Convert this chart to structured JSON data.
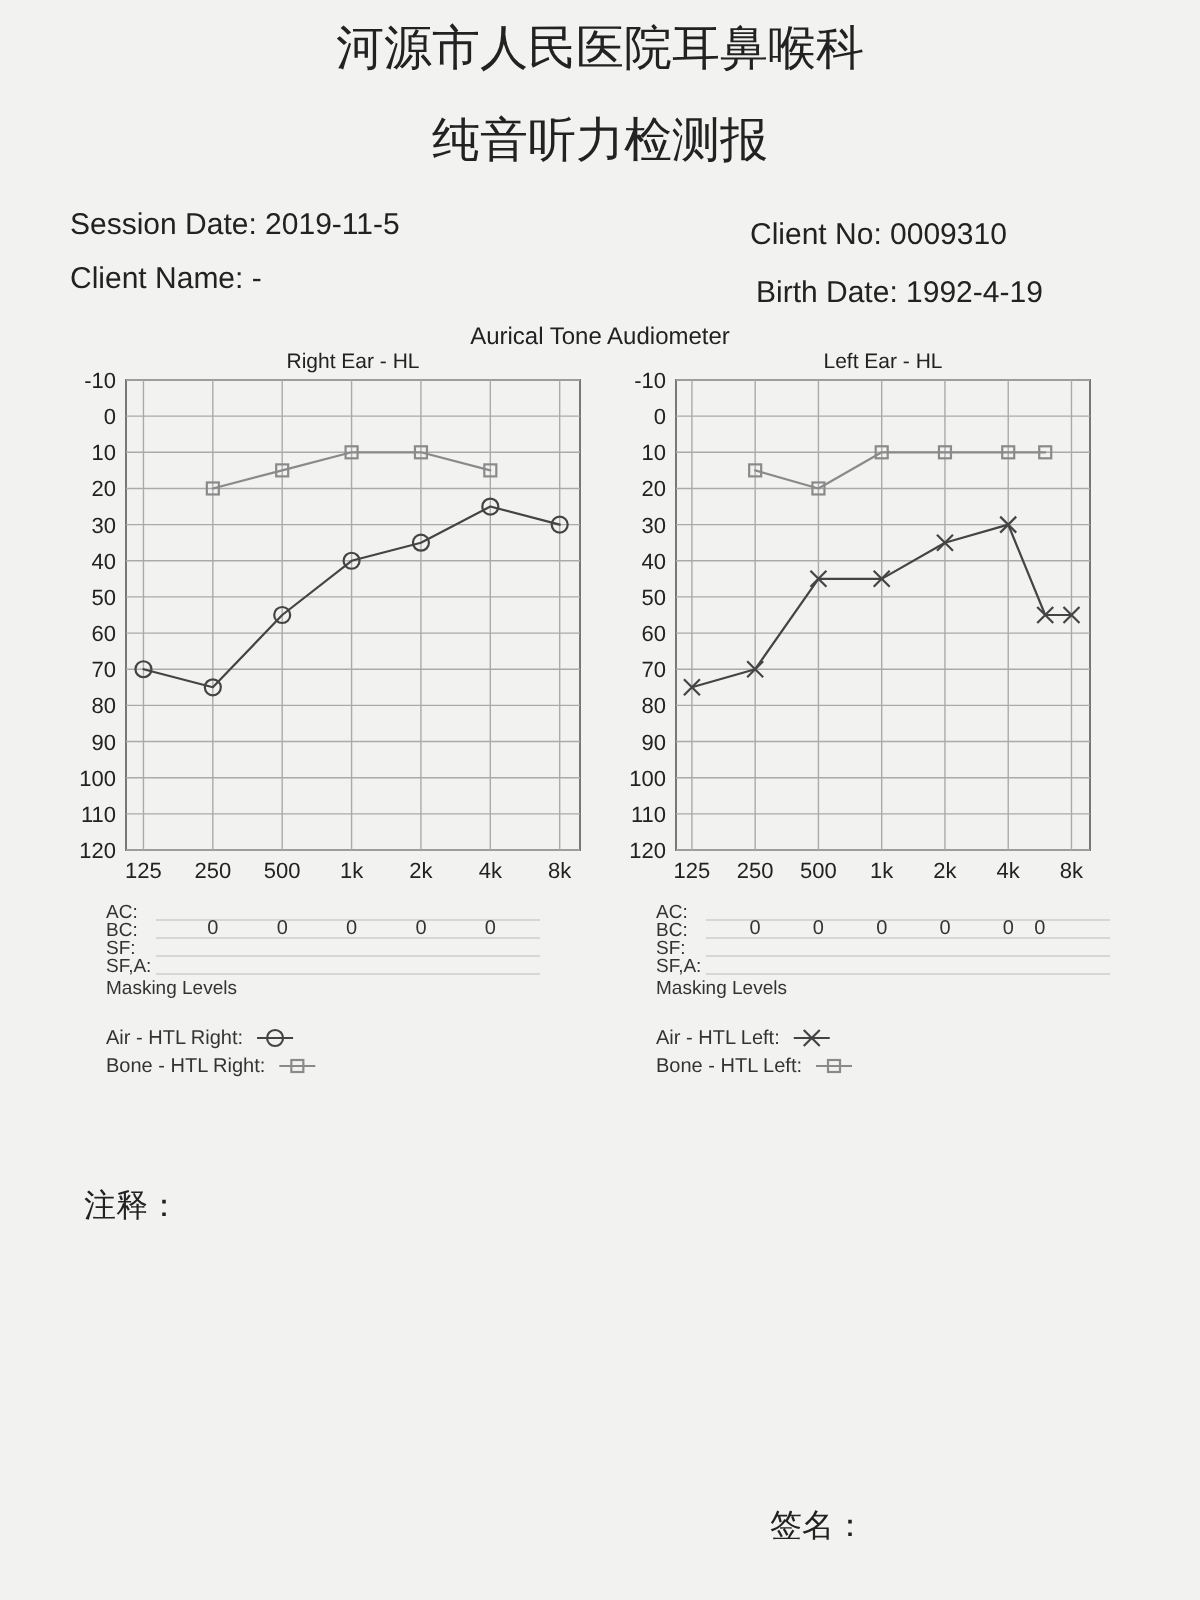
{
  "chart_data": [
    {
      "type": "line",
      "title": "Right Ear - HL",
      "log": "x",
      "grid": true,
      "legend": "bottom",
      "xlim": [
        105,
        9800
      ],
      "ylim": [
        120,
        -10
      ],
      "xticks": [
        125,
        250,
        500,
        {
          "value": 1000,
          "label": "1k"
        },
        {
          "value": 2000,
          "label": "2k"
        },
        {
          "value": 4000,
          "label": "4k"
        },
        {
          "value": 8000,
          "label": "8k"
        }
      ],
      "yticks": [
        -10,
        0,
        10,
        20,
        30,
        40,
        50,
        60,
        70,
        80,
        90,
        100,
        110,
        120
      ],
      "series": [
        {
          "name": "Air - HTL Right:",
          "color": "#444444",
          "marker": "circle",
          "x": [
            125,
            250,
            500,
            1000,
            2000,
            4000,
            8000
          ],
          "values": [
            70,
            75,
            55,
            40,
            35,
            25,
            30
          ]
        },
        {
          "name": "Bone - HTL Right:",
          "color": "#8a8a8a",
          "marker": "square",
          "x": [
            250,
            500,
            1000,
            2000,
            4000
          ],
          "values": [
            20,
            15,
            10,
            10,
            15
          ]
        }
      ],
      "annotations": [
        "河源市人民医院耳鼻喉科",
        "纯音听力检测报",
        "Session Date: 2019-11-5",
        "Client No: 0009310",
        "Client Name: -",
        "Birth Date: 1992-4-19",
        "Aurical Tone Audiometer",
        "注释：",
        "签名：",
        "AC:",
        "BC:",
        "SF:",
        "SF,A:",
        "Masking Levels",
        "0",
        "0",
        "0",
        "0",
        "0"
      ]
    },
    {
      "type": "line",
      "title": "Left Ear - HL",
      "log": "x",
      "grid": true,
      "legend": "bottom",
      "xlim": [
        105,
        9800
      ],
      "ylim": [
        120,
        -10
      ],
      "xticks": [
        125,
        250,
        500,
        {
          "value": 1000,
          "label": "1k"
        },
        {
          "value": 2000,
          "label": "2k"
        },
        {
          "value": 4000,
          "label": "4k"
        },
        {
          "value": 8000,
          "label": "8k"
        }
      ],
      "yticks": [
        -10,
        0,
        10,
        20,
        30,
        40,
        50,
        60,
        70,
        80,
        90,
        100,
        110,
        120
      ],
      "series": [
        {
          "name": "Air - HTL Left:",
          "color": "#444444",
          "marker": "cross",
          "x": [
            125,
            250,
            500,
            1000,
            2000,
            4000,
            6000,
            8000
          ],
          "values": [
            75,
            70,
            45,
            45,
            35,
            30,
            55,
            55
          ]
        },
        {
          "name": "Bone - HTL Left:",
          "color": "#8a8a8a",
          "marker": "square",
          "x": [
            250,
            500,
            1000,
            2000,
            4000,
            6000
          ],
          "values": [
            15,
            20,
            10,
            10,
            10,
            10
          ]
        }
      ],
      "annotations": [
        "AC:",
        "BC:",
        "SF:",
        "SF,A:",
        "Masking Levels",
        "0",
        "0",
        "0",
        "0",
        "0",
        "0"
      ]
    }
  ]
}
